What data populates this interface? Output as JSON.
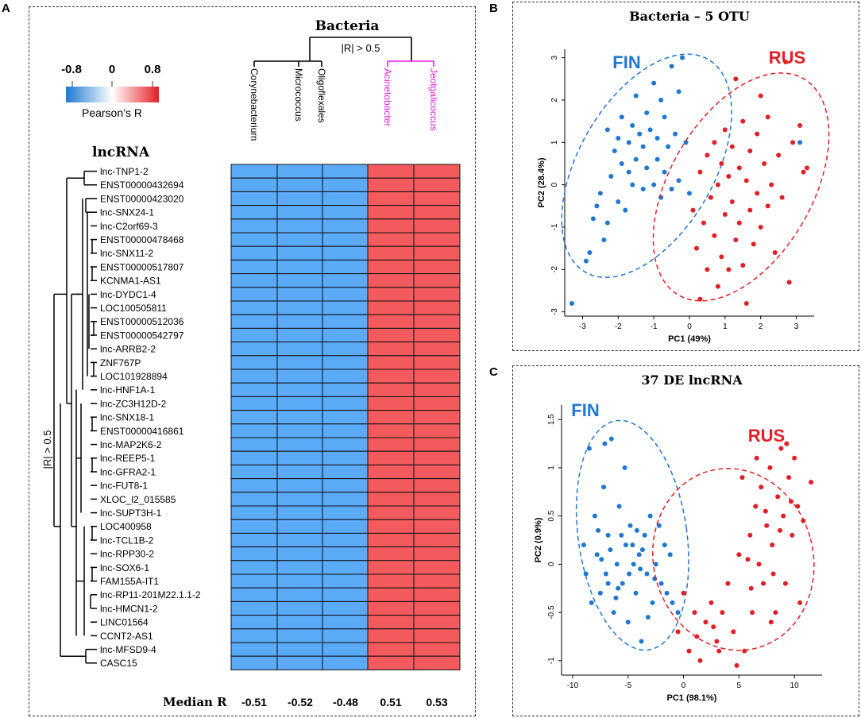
{
  "panels": {
    "a_label": "A",
    "b_label": "B",
    "c_label": "C"
  },
  "colors": {
    "blue": "#1e78d2",
    "red": "#e31e24",
    "magenta": "#e020e0",
    "cell_blue": "#5aaaf8",
    "cell_red": "#f25a5e"
  },
  "legend": {
    "min": "-0.8",
    "mid": "0",
    "max": "0.8",
    "title": "Pearson’s R"
  },
  "heatmap": {
    "bacteria_title": "Bacteria",
    "threshold_label": "|R| > 0.5",
    "lncrna_title": "lncRNA",
    "median_label": "Median R",
    "columns": [
      "Corynebacterium",
      "Micrococcus",
      "Oligoflexales",
      "Acinetobacter",
      "Jeotgalicoccus"
    ],
    "column_colors": [
      "#000000",
      "#000000",
      "#000000",
      "#e020e0",
      "#e020e0"
    ],
    "median_values": [
      "-0.51",
      "-0.52",
      "-0.48",
      "0.51",
      "0.53"
    ],
    "rows": [
      "lnc-TNP1-2",
      "ENST00000432694",
      "ENST00000423020",
      "lnc-SNX24-1",
      "lnc-C2orf69-3",
      "ENST00000478468",
      "lnc-SNX11-2",
      "ENST00000517807",
      "KCNMA1-AS1",
      "lnc-DYDC1-4",
      "LOC100505811",
      "ENST00000512036",
      "ENST00000542797",
      "lnc-ARRB2-2",
      "ZNF767P",
      "LOC101928894",
      "lnc-HNF1A-1",
      "lnc-ZC3H12D-2",
      "lnc-SNX18-1",
      "ENST00000416861",
      "lnc-MAP2K6-2",
      "lnc-REEP5-1",
      "lnc-GFRA2-1",
      "lnc-FUT8-1",
      "XLOC_l2_015585",
      "lnc-SUPT3H-1",
      "LOC400958",
      "lnc-TCL1B-2",
      "lnc-RPP30-2",
      "lnc-SOX6-1",
      "FAM155A-IT1",
      "lnc-RP11-201M22.1.1-2",
      "lnc-HMCN1-2",
      "LINC01564",
      "CCNT2-AS1",
      "lnc-MFSD9-4",
      "CASC15"
    ],
    "row_dendrogram_label": "|R| > 0.5"
  },
  "chart_data": [
    {
      "type": "scatter",
      "title": "Bacteria – 5 OTU",
      "xlabel": "PC1 (49%)",
      "ylabel": "PC2 (28.4%)",
      "xlim": [
        -3.5,
        3.5
      ],
      "ylim": [
        -3.1,
        3.2
      ],
      "xticks": [
        -3,
        -2,
        -1,
        0,
        1,
        2,
        3
      ],
      "yticks": [
        -3,
        -2,
        -1,
        0,
        1,
        2,
        3
      ],
      "groups": [
        {
          "name": "FIN",
          "color": "#1e78d2",
          "ellipse": {
            "cx": -1.2,
            "cy": 0.45,
            "rx": 1.9,
            "ry": 2.9,
            "angle": 30
          },
          "points": [
            [
              -3.3,
              -2.8
            ],
            [
              -2.9,
              -1.8
            ],
            [
              -2.8,
              -1.6
            ],
            [
              -2.7,
              -0.8
            ],
            [
              -2.6,
              -0.5
            ],
            [
              -2.5,
              -0.2
            ],
            [
              -2.4,
              -1.3
            ],
            [
              -2.3,
              -0.9
            ],
            [
              -2.2,
              0.2
            ],
            [
              -2.1,
              0.8
            ],
            [
              -2.0,
              1.1
            ],
            [
              -2.0,
              -0.4
            ],
            [
              -1.9,
              0.5
            ],
            [
              -1.9,
              1.6
            ],
            [
              -1.8,
              -0.6
            ],
            [
              -1.7,
              1.0
            ],
            [
              -1.7,
              0.3
            ],
            [
              -1.6,
              1.4
            ],
            [
              -1.5,
              0.6
            ],
            [
              -1.5,
              2.1
            ],
            [
              -1.4,
              1.2
            ],
            [
              -1.3,
              -0.1
            ],
            [
              -1.3,
              0.9
            ],
            [
              -1.2,
              1.7
            ],
            [
              -1.2,
              0.4
            ],
            [
              -1.1,
              1.3
            ],
            [
              -1.0,
              2.4
            ],
            [
              -1.0,
              0.0
            ],
            [
              -0.9,
              1.1
            ],
            [
              -0.9,
              0.6
            ],
            [
              -0.8,
              2.0
            ],
            [
              -0.8,
              -0.3
            ],
            [
              -0.7,
              1.6
            ],
            [
              -0.7,
              0.3
            ],
            [
              -0.6,
              0.9
            ],
            [
              -0.5,
              2.8
            ],
            [
              -0.5,
              -0.1
            ],
            [
              -0.4,
              1.2
            ],
            [
              -0.3,
              0.1
            ],
            [
              -0.2,
              3.0
            ],
            [
              -0.1,
              1.0
            ],
            [
              0.0,
              -0.2
            ],
            [
              -1.6,
              0.0
            ],
            [
              -2.3,
              1.3
            ],
            [
              -0.3,
              2.2
            ],
            [
              3.1,
              1.0
            ]
          ]
        },
        {
          "name": "RUS",
          "color": "#e31e24",
          "ellipse": {
            "cx": 1.45,
            "cy": -0.05,
            "rx": 2.0,
            "ry": 2.95,
            "angle": 30
          },
          "points": [
            [
              0.1,
              -0.6
            ],
            [
              0.2,
              -1.5
            ],
            [
              0.3,
              0.3
            ],
            [
              0.4,
              -0.9
            ],
            [
              0.5,
              0.7
            ],
            [
              0.5,
              -2.0
            ],
            [
              0.6,
              -0.3
            ],
            [
              0.7,
              1.0
            ],
            [
              0.7,
              -1.2
            ],
            [
              0.8,
              0.0
            ],
            [
              0.8,
              -2.4
            ],
            [
              0.9,
              0.5
            ],
            [
              0.9,
              -1.7
            ],
            [
              1.0,
              -0.7
            ],
            [
              1.0,
              1.3
            ],
            [
              1.1,
              0.2
            ],
            [
              1.1,
              -2.0
            ],
            [
              1.2,
              -0.4
            ],
            [
              1.2,
              0.9
            ],
            [
              1.3,
              -1.3
            ],
            [
              1.3,
              2.5
            ],
            [
              1.4,
              0.4
            ],
            [
              1.4,
              -0.9
            ],
            [
              1.5,
              -1.9
            ],
            [
              1.5,
              1.5
            ],
            [
              1.6,
              0.1
            ],
            [
              1.6,
              -2.8
            ],
            [
              1.7,
              -0.6
            ],
            [
              1.7,
              0.8
            ],
            [
              1.8,
              -1.4
            ],
            [
              1.9,
              1.2
            ],
            [
              1.9,
              -0.2
            ],
            [
              2.0,
              2.1
            ],
            [
              2.0,
              -1.0
            ],
            [
              2.1,
              0.5
            ],
            [
              2.2,
              -0.5
            ],
            [
              2.2,
              1.6
            ],
            [
              2.3,
              0.0
            ],
            [
              2.4,
              -1.6
            ],
            [
              2.5,
              0.7
            ],
            [
              2.6,
              -0.3
            ],
            [
              2.7,
              2.9
            ],
            [
              2.8,
              -2.3
            ],
            [
              3.1,
              1.4
            ],
            [
              3.2,
              0.3
            ],
            [
              3.3,
              0.4
            ],
            [
              0.3,
              -2.7
            ],
            [
              2.9,
              1.0
            ]
          ]
        }
      ]
    },
    {
      "type": "scatter",
      "title": "37 DE lncRNA",
      "xlabel": "PC1 (98.1%)",
      "ylabel": "PC2 (0.9%)",
      "xlim": [
        -11,
        12.5
      ],
      "ylim": [
        -1.15,
        1.65
      ],
      "xticks": [
        -10,
        -5,
        0,
        5,
        10
      ],
      "yticks": [
        -1,
        -0.5,
        0,
        0.5,
        1,
        1.5
      ],
      "groups": [
        {
          "name": "FIN",
          "color": "#1e78d2",
          "ellipse": {
            "cx": -4.6,
            "cy": 0.3,
            "rx": 4.9,
            "ry": 1.2,
            "angle": -8
          },
          "points": [
            [
              -8.5,
              1.2
            ],
            [
              -8.0,
              0.5
            ],
            [
              -7.8,
              0.1
            ],
            [
              -7.5,
              -0.3
            ],
            [
              -7.2,
              0.8
            ],
            [
              -7.0,
              -0.1
            ],
            [
              -6.8,
              0.3
            ],
            [
              -6.5,
              1.3
            ],
            [
              -6.3,
              -0.5
            ],
            [
              -6.0,
              0.0
            ],
            [
              -5.8,
              0.6
            ],
            [
              -5.5,
              -0.2
            ],
            [
              -5.2,
              0.2
            ],
            [
              -5.0,
              -0.6
            ],
            [
              -4.8,
              0.4
            ],
            [
              -4.5,
              0.0
            ],
            [
              -4.3,
              -0.3
            ],
            [
              -4.0,
              0.1
            ],
            [
              -3.8,
              -0.8
            ],
            [
              -3.5,
              0.3
            ],
            [
              -3.3,
              -0.1
            ],
            [
              -3.0,
              0.5
            ],
            [
              -2.8,
              -0.4
            ],
            [
              -2.5,
              0.0
            ],
            [
              -2.2,
              0.4
            ],
            [
              -2.0,
              -0.2
            ],
            [
              -1.7,
              0.2
            ],
            [
              -1.5,
              -0.3
            ],
            [
              -1.2,
              0.1
            ],
            [
              -1.0,
              -0.4
            ],
            [
              -0.5,
              -0.5
            ],
            [
              -6.8,
              -0.2
            ],
            [
              -5.6,
              0.3
            ],
            [
              -4.6,
              0.2
            ],
            [
              -7.4,
              0.05
            ],
            [
              -6.1,
              -0.35
            ],
            [
              -3.9,
              -0.05
            ],
            [
              -8.8,
              -0.1
            ],
            [
              -9.0,
              0.2
            ],
            [
              -5.3,
              1.0
            ],
            [
              -7.1,
              1.25
            ],
            [
              -2.6,
              -0.15
            ],
            [
              -4.2,
              0.35
            ],
            [
              -3.2,
              -0.55
            ],
            [
              -6.6,
              0.15
            ],
            [
              -5.9,
              -0.25
            ],
            [
              -8.3,
              -0.4
            ],
            [
              -7.7,
              0.35
            ],
            [
              -4.9,
              -0.1
            ],
            [
              -3.7,
              0.15
            ]
          ]
        },
        {
          "name": "RUS",
          "color": "#e31e24",
          "ellipse": {
            "cx": 4.5,
            "cy": 0.05,
            "rx": 7.2,
            "ry": 0.95,
            "angle": -15
          },
          "points": [
            [
              -0.5,
              -0.7
            ],
            [
              0.0,
              -0.3
            ],
            [
              0.5,
              -0.9
            ],
            [
              1.0,
              -0.5
            ],
            [
              1.5,
              -1.0
            ],
            [
              2.0,
              -0.6
            ],
            [
              2.5,
              -0.4
            ],
            [
              3.0,
              -0.8
            ],
            [
              3.5,
              -0.5
            ],
            [
              4.0,
              -0.2
            ],
            [
              4.5,
              -0.7
            ],
            [
              5.0,
              0.1
            ],
            [
              5.5,
              -0.9
            ],
            [
              6.0,
              0.3
            ],
            [
              6.2,
              -0.5
            ],
            [
              6.5,
              0.6
            ],
            [
              6.8,
              0.0
            ],
            [
              7.0,
              0.8
            ],
            [
              7.2,
              -0.2
            ],
            [
              7.5,
              0.4
            ],
            [
              7.8,
              1.0
            ],
            [
              8.0,
              0.2
            ],
            [
              8.3,
              -0.5
            ],
            [
              8.5,
              0.7
            ],
            [
              8.8,
              1.2
            ],
            [
              9.0,
              0.5
            ],
            [
              9.2,
              -0.2
            ],
            [
              9.5,
              0.9
            ],
            [
              9.8,
              0.3
            ],
            [
              10.0,
              1.1
            ],
            [
              10.3,
              0.6
            ],
            [
              10.5,
              -0.4
            ],
            [
              11.5,
              0.85
            ],
            [
              5.3,
              0.9
            ],
            [
              4.8,
              -1.05
            ],
            [
              3.2,
              -0.9
            ],
            [
              7.9,
              -0.6
            ],
            [
              6.6,
              1.1
            ],
            [
              9.3,
              1.25
            ],
            [
              8.1,
              -0.1
            ],
            [
              6.1,
              -0.25
            ],
            [
              2.7,
              -0.65
            ],
            [
              1.2,
              -0.75
            ],
            [
              7.4,
              0.55
            ],
            [
              5.8,
              0.05
            ],
            [
              8.7,
              0.35
            ],
            [
              9.7,
              0.65
            ],
            [
              10.8,
              0.45
            ]
          ]
        }
      ]
    }
  ]
}
